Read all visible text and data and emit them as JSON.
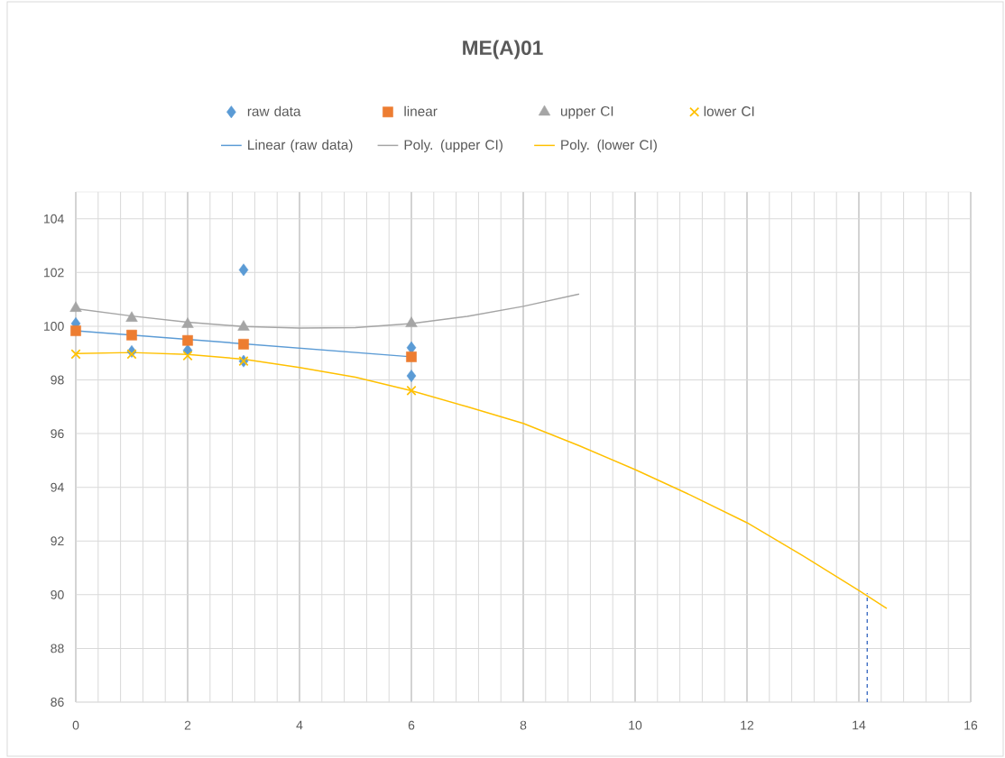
{
  "chart_data": {
    "type": "scatter",
    "title": "ME(A)01",
    "xlim": [
      0,
      16
    ],
    "xticks": [
      0,
      2,
      4,
      6,
      8,
      10,
      12,
      14,
      16
    ],
    "ylim": [
      86,
      105
    ],
    "yticks": [
      86,
      88,
      90,
      92,
      94,
      96,
      98,
      100,
      102,
      104
    ],
    "grid": true,
    "legend": "top",
    "series": [
      {
        "name": "raw data",
        "marker": "diamond",
        "color": "#5b9bd5",
        "x": [
          0,
          1,
          2,
          3,
          3,
          6,
          6
        ],
        "values": [
          100.1,
          99.06,
          99.1,
          102.1,
          98.7,
          99.2,
          98.15
        ]
      },
      {
        "name": "linear",
        "marker": "square",
        "color": "#ed7d31",
        "x": [
          0,
          1,
          2,
          3,
          6
        ],
        "values": [
          99.83,
          99.67,
          99.47,
          99.33,
          98.86
        ]
      },
      {
        "name": "upper CI",
        "marker": "triangle",
        "color": "#a5a5a5",
        "x": [
          0,
          1,
          2,
          3,
          6
        ],
        "values": [
          100.67,
          100.3,
          100.07,
          99.97,
          100.1
        ]
      },
      {
        "name": "lower CI",
        "marker": "cross",
        "color": "#ffc000",
        "x": [
          0,
          1,
          2,
          3,
          6
        ],
        "values": [
          98.96,
          98.96,
          98.9,
          98.7,
          97.6
        ]
      },
      {
        "name": "Linear (raw data)",
        "type": "line",
        "marker": "none",
        "line_style": "solid",
        "color": "#5b9bd5",
        "x": [
          0,
          6
        ],
        "values": [
          99.83,
          98.86
        ]
      },
      {
        "name": "Poly. (upper CI)",
        "type": "line",
        "marker": "none",
        "line_style": "solid",
        "color": "#a5a5a5",
        "x": [
          0,
          1,
          2,
          3,
          4,
          5,
          6,
          7,
          8,
          9
        ],
        "values": [
          100.65,
          100.38,
          100.15,
          99.99,
          99.93,
          99.95,
          100.1,
          100.37,
          100.74,
          101.2
        ]
      },
      {
        "name": "Poly. (lower CI)",
        "type": "line",
        "marker": "none",
        "line_style": "solid",
        "color": "#ffc000",
        "x": [
          0,
          1,
          2,
          3,
          4,
          5,
          6,
          7,
          8,
          9,
          10,
          11,
          12,
          13,
          14,
          14.5
        ],
        "values": [
          98.98,
          99.02,
          98.95,
          98.77,
          98.46,
          98.1,
          97.6,
          97.0,
          96.38,
          95.55,
          94.66,
          93.7,
          92.68,
          91.45,
          90.16,
          89.49
        ]
      },
      {
        "type": "line",
        "marker": "none",
        "line_style": "dashed",
        "color": "#4472c4",
        "x": [
          14.15,
          14.15
        ],
        "values": [
          86,
          90.05
        ]
      }
    ]
  }
}
